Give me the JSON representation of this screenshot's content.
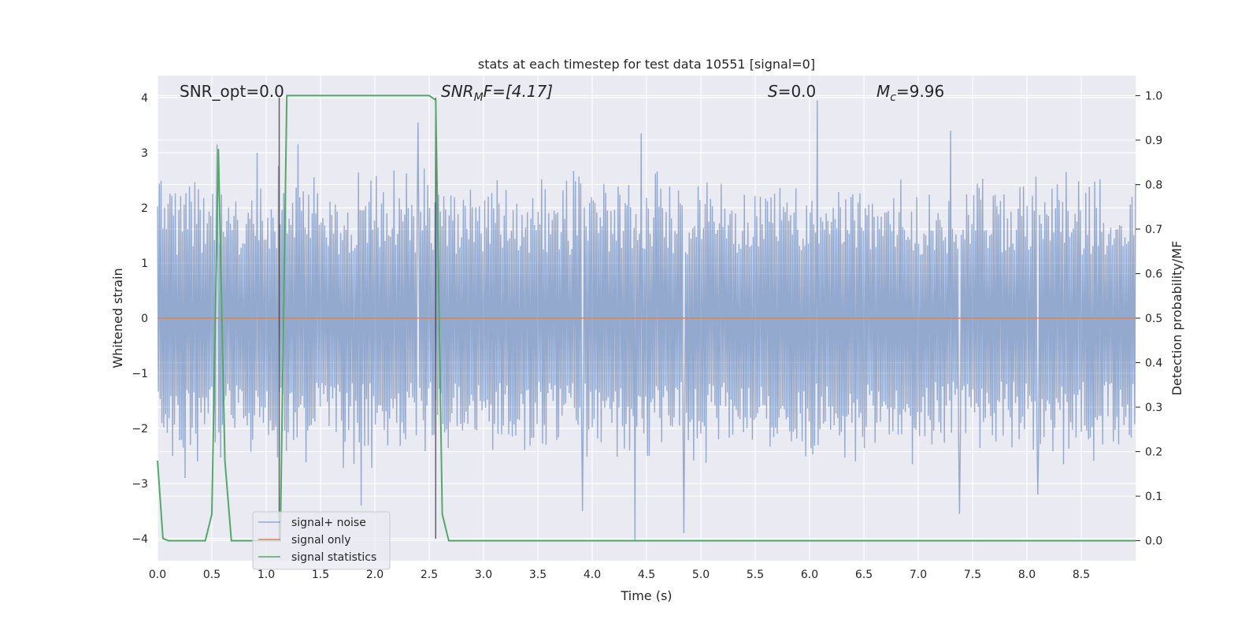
{
  "chart_data": {
    "type": "line",
    "title": "stats at each timestep for test data 10551 [signal=0]",
    "xlabel": "Time (s)",
    "ylabel_left": "Whitened strain",
    "ylabel_right": "Detection probability/MF",
    "xlim": [
      0.0,
      9.0
    ],
    "ylim_left": [
      -4.4,
      4.4
    ],
    "ylim_right": [
      -0.045,
      1.045
    ],
    "grid": true,
    "xticks": [
      "0.0",
      "0.5",
      "1.0",
      "1.5",
      "2.0",
      "2.5",
      "3.0",
      "3.5",
      "4.0",
      "4.5",
      "5.0",
      "5.5",
      "6.0",
      "6.5",
      "7.0",
      "7.5",
      "8.0",
      "8.5"
    ],
    "yticks_left": [
      "−4",
      "−3",
      "−2",
      "−1",
      "0",
      "1",
      "2",
      "3",
      "4"
    ],
    "yticks_right": [
      "0.0",
      "0.1",
      "0.2",
      "0.3",
      "0.4",
      "0.5",
      "0.6",
      "0.7",
      "0.8",
      "0.9",
      "1.0"
    ],
    "annotations": {
      "snr_opt": "SNR_opt=0.0",
      "snr_mf_base": "SNR",
      "snr_mf_sub": "M",
      "snr_mf_rest": "F=[4.17]",
      "s_var": "S",
      "s_rest": "=0.0",
      "mc_base": "M",
      "mc_sub": "c",
      "mc_rest": "=9.96"
    },
    "vlines_x": [
      1.12,
      2.56
    ],
    "series": [
      {
        "name": "signal+ noise",
        "color": "#4c72b0",
        "envelope_typical": 2.0,
        "peaks": [
          [
            0.55,
            3.15
          ],
          [
            0.92,
            3.0
          ],
          [
            1.29,
            3.15
          ],
          [
            2.4,
            3.55
          ],
          [
            4.45,
            3.35
          ],
          [
            6.07,
            3.95
          ],
          [
            7.3,
            3.4
          ],
          [
            0.25,
            -2.9
          ],
          [
            1.87,
            -3.4
          ],
          [
            3.91,
            -3.5
          ],
          [
            4.39,
            -4.05
          ],
          [
            4.84,
            -3.9
          ],
          [
            7.38,
            -3.55
          ],
          [
            8.1,
            -3.2
          ]
        ]
      },
      {
        "name": "signal only",
        "color": "#dd8452",
        "x": [
          0.0,
          9.0
        ],
        "y": [
          0.0,
          0.0
        ]
      },
      {
        "name": "signal statistics",
        "color": "#55a868",
        "axis": "right",
        "x": [
          0.0,
          0.05,
          0.1,
          0.44,
          0.5,
          0.56,
          0.62,
          0.68,
          1.13,
          1.19,
          2.5,
          2.56,
          2.62,
          2.68,
          9.0
        ],
        "y": [
          0.18,
          0.005,
          0.0,
          0.0,
          0.06,
          0.88,
          0.18,
          0.0,
          0.0,
          1.0,
          1.0,
          0.99,
          0.06,
          0.0,
          0.0
        ]
      }
    ],
    "legend": {
      "placement": "lower-left",
      "entries": [
        "signal+ noise",
        "signal only",
        "signal statistics"
      ]
    }
  }
}
